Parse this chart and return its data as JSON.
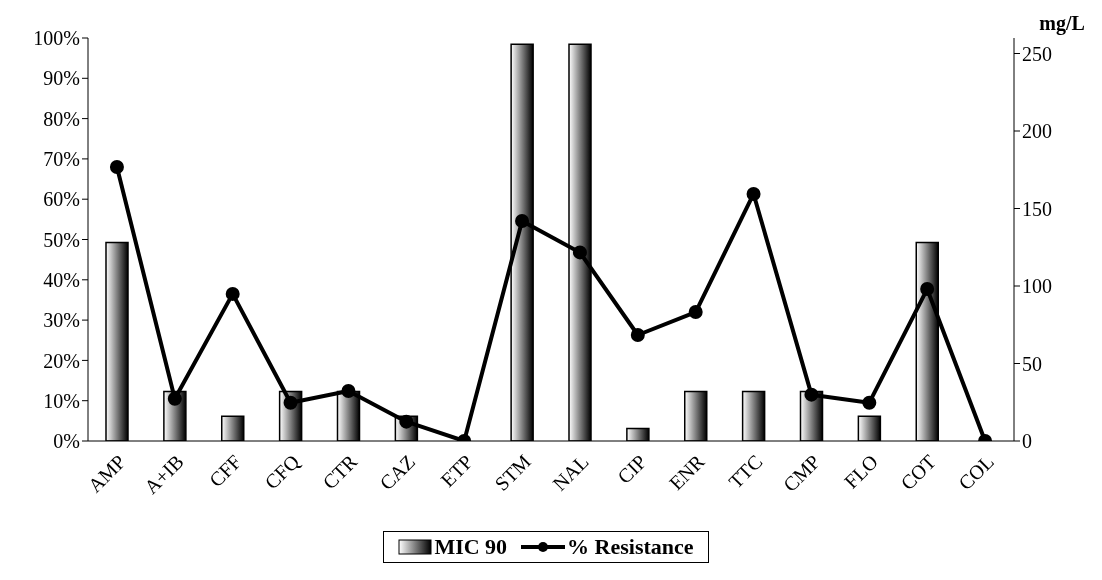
{
  "chart_data": {
    "type": "bar",
    "categories": [
      "AMP",
      "A+IB",
      "CFF",
      "CFQ",
      "CTR",
      "CAZ",
      "ETP",
      "STM",
      "NAL",
      "CIP",
      "ENR",
      "TTC",
      "CMP",
      "FLO",
      "COT",
      "COL"
    ],
    "series": [
      {
        "name": "MIC 90",
        "axis": "y2",
        "color": "#000000",
        "values": [
          128,
          32,
          16,
          32,
          32,
          16,
          null,
          256,
          256,
          8,
          32,
          32,
          32,
          16,
          128,
          null
        ]
      },
      {
        "name": "% Resistance",
        "type": "line",
        "color": "#000000",
        "values": [
          68,
          10.5,
          36.5,
          9.5,
          12.4,
          4.8,
          0,
          54.6,
          46.8,
          26.3,
          32,
          61.3,
          11.5,
          9.5,
          37.7,
          0
        ]
      }
    ],
    "ylim": [
      0,
      100
    ],
    "yticks": [
      {
        "value": 0,
        "label": "0%"
      },
      {
        "value": 10,
        "label": "10%"
      },
      {
        "value": 20,
        "label": "20%"
      },
      {
        "value": 30,
        "label": "30%"
      },
      {
        "value": 40,
        "label": "40%"
      },
      {
        "value": 50,
        "label": "50%"
      },
      {
        "value": 60,
        "label": "60%"
      },
      {
        "value": 70,
        "label": "70%"
      },
      {
        "value": 80,
        "label": "80%"
      },
      {
        "value": 90,
        "label": "90%"
      },
      {
        "value": 100,
        "label": "100%"
      }
    ],
    "y2lim": [
      0,
      260
    ],
    "y2ticks": [
      0,
      50,
      100,
      150,
      200,
      250
    ],
    "y2label": "mg/L",
    "grid": false,
    "legend": "bottom",
    "marker": "circle",
    "line_style": "solid"
  }
}
